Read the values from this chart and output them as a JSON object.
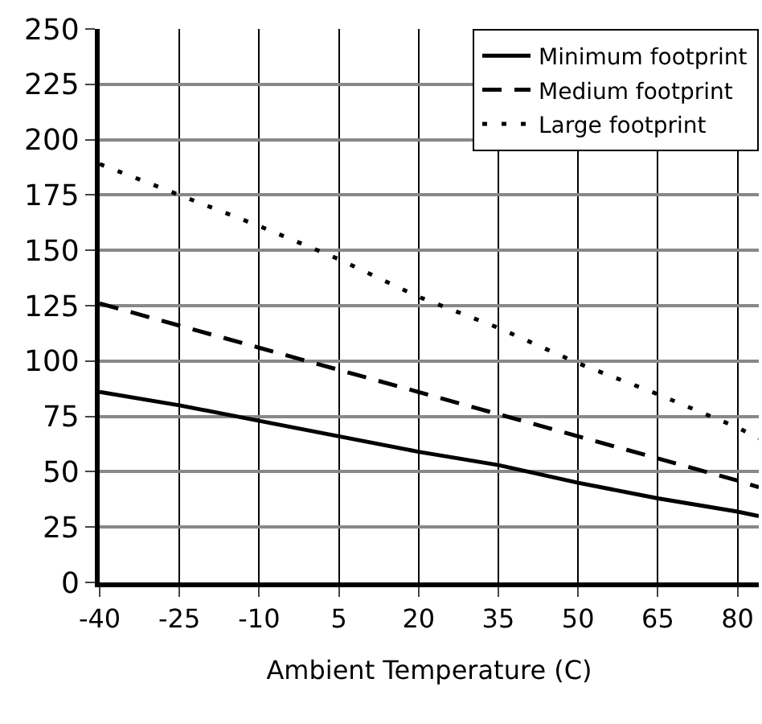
{
  "chart_data": {
    "type": "line",
    "xlabel": "Ambient Temperature (C)",
    "x": [
      -40,
      -25,
      -10,
      5,
      20,
      35,
      50,
      65,
      80,
      84
    ],
    "series": [
      {
        "name": "Minimum footprint",
        "color": "#000000",
        "line_style": "solid",
        "values": [
          86,
          80,
          73,
          66,
          59,
          53,
          45,
          38,
          32,
          30
        ]
      },
      {
        "name": "Medium footprint",
        "color": "#000000",
        "line_style": "dashed",
        "values": [
          126,
          116,
          106,
          96,
          86,
          76,
          66,
          56,
          46,
          43
        ]
      },
      {
        "name": "Large footprint",
        "color": "#000000",
        "line_style": "dotted",
        "values": [
          189,
          175,
          161,
          146,
          129,
          115,
          99,
          85,
          70,
          65
        ]
      }
    ],
    "xlim": [
      -40,
      84
    ],
    "xticks": [
      -40,
      -25,
      -10,
      5,
      20,
      35,
      50,
      65,
      80
    ],
    "ylim": [
      0,
      250
    ],
    "yticks": [
      0,
      25,
      50,
      75,
      100,
      125,
      150,
      175,
      200,
      225,
      250
    ],
    "grid": true,
    "legend": "top right",
    "marker": "none"
  }
}
